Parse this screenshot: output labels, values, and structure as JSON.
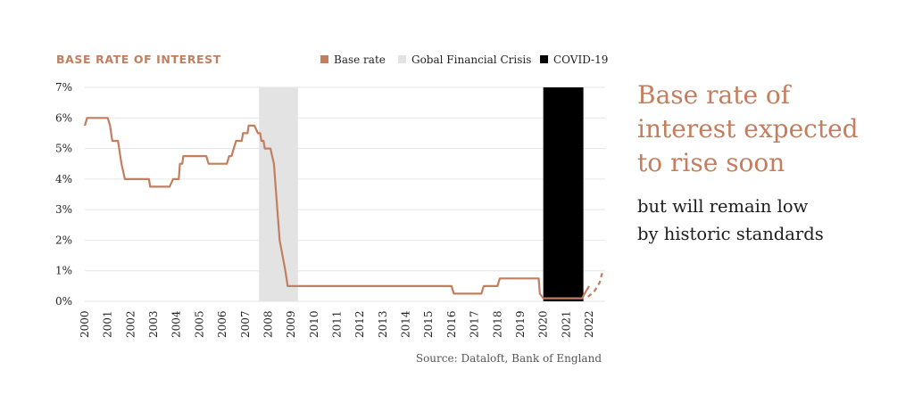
{
  "colors": {
    "accent": "#c27e5e",
    "gfc": "#e3e3e3",
    "covid": "#000000",
    "grid": "#e6e6e6"
  },
  "chart_data": {
    "type": "line",
    "title": "BASE RATE OF INTEREST",
    "xlabel": "",
    "ylabel": "",
    "ylim": [
      0,
      7
    ],
    "xlim": [
      2000,
      2022.7
    ],
    "y_ticks": [
      "0%",
      "1%",
      "2%",
      "3%",
      "4%",
      "5%",
      "6%",
      "7%"
    ],
    "x_ticks": [
      "2000",
      "2001",
      "2002",
      "2003",
      "2004",
      "2005",
      "2006",
      "2007",
      "2008",
      "2009",
      "2010",
      "2011",
      "2012",
      "2013",
      "2014",
      "2015",
      "2016",
      "2017",
      "2018",
      "2019",
      "2020",
      "2021",
      "2022"
    ],
    "grid": true,
    "legend_position": "top",
    "legend": [
      {
        "label": "Base rate",
        "color": "#c27e5e"
      },
      {
        "label": "Gobal Financial Crisis",
        "color": "#e3e3e3"
      },
      {
        "label": "COVID-19",
        "color": "#000000"
      }
    ],
    "bands": [
      {
        "name": "Gobal Financial Crisis",
        "x0": 2007.6,
        "x1": 2009.3,
        "color": "#e3e3e3"
      },
      {
        "name": "COVID-19",
        "x0": 2020.0,
        "x1": 2021.75,
        "color": "#000000"
      }
    ],
    "series": [
      {
        "name": "Base rate",
        "color": "#c27e5e",
        "style": "solid",
        "points": [
          [
            2000.0,
            5.75
          ],
          [
            2000.1,
            6.0
          ],
          [
            2001.0,
            6.0
          ],
          [
            2001.1,
            5.75
          ],
          [
            2001.15,
            5.5
          ],
          [
            2001.2,
            5.25
          ],
          [
            2001.45,
            5.25
          ],
          [
            2001.6,
            4.5
          ],
          [
            2001.75,
            4.0
          ],
          [
            2002.0,
            4.0
          ],
          [
            2002.8,
            4.0
          ],
          [
            2002.85,
            3.75
          ],
          [
            2003.7,
            3.75
          ],
          [
            2003.85,
            4.0
          ],
          [
            2004.1,
            4.0
          ],
          [
            2004.15,
            4.5
          ],
          [
            2004.25,
            4.5
          ],
          [
            2004.3,
            4.75
          ],
          [
            2005.3,
            4.75
          ],
          [
            2005.4,
            4.5
          ],
          [
            2006.2,
            4.5
          ],
          [
            2006.3,
            4.75
          ],
          [
            2006.4,
            4.75
          ],
          [
            2006.5,
            5.0
          ],
          [
            2006.6,
            5.25
          ],
          [
            2006.85,
            5.25
          ],
          [
            2006.9,
            5.5
          ],
          [
            2007.1,
            5.5
          ],
          [
            2007.15,
            5.75
          ],
          [
            2007.4,
            5.75
          ],
          [
            2007.55,
            5.5
          ],
          [
            2007.65,
            5.5
          ],
          [
            2007.7,
            5.25
          ],
          [
            2007.8,
            5.25
          ],
          [
            2007.85,
            5.0
          ],
          [
            2008.1,
            5.0
          ],
          [
            2008.25,
            4.5
          ],
          [
            2008.4,
            3.0
          ],
          [
            2008.5,
            2.0
          ],
          [
            2008.75,
            1.0
          ],
          [
            2008.85,
            0.5
          ],
          [
            2016.0,
            0.5
          ],
          [
            2016.1,
            0.25
          ],
          [
            2017.3,
            0.25
          ],
          [
            2017.4,
            0.5
          ],
          [
            2018.0,
            0.5
          ],
          [
            2018.1,
            0.75
          ],
          [
            2019.8,
            0.75
          ],
          [
            2019.85,
            0.25
          ],
          [
            2020.0,
            0.1
          ],
          [
            2021.7,
            0.1
          ],
          [
            2021.8,
            0.25
          ],
          [
            2022.0,
            0.5
          ]
        ]
      },
      {
        "name": "Base rate",
        "color": "#c27e5e",
        "style": "dashed",
        "points": [
          [
            2021.95,
            0.15
          ],
          [
            2022.2,
            0.3
          ],
          [
            2022.45,
            0.6
          ],
          [
            2022.6,
            1.0
          ]
        ]
      }
    ],
    "source": "Source: Dataloft, Bank of England"
  },
  "side_text": {
    "headline": [
      "Base rate of",
      "interest expected",
      "to rise soon"
    ],
    "subtext": [
      "but will remain low",
      "by historic standards"
    ]
  }
}
